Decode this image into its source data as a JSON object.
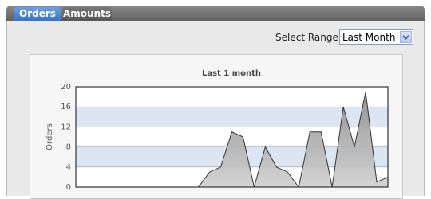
{
  "tabs": [
    "Orders",
    "Amounts"
  ],
  "range_label": "Select Range:",
  "range_value": "Last Month",
  "chart_data": {
    "type": "area",
    "title": "Last 1 month",
    "y_label": "Orders",
    "values": [
      0,
      0,
      0,
      0,
      0,
      0,
      0,
      0,
      0,
      0,
      0,
      0,
      3,
      4,
      11,
      10,
      0,
      8,
      4,
      3,
      0,
      11,
      11,
      0,
      16,
      8,
      19,
      1,
      2
    ],
    "color": "#999999",
    "ylim": [
      0,
      20
    ],
    "yticks": [
      0,
      4,
      8,
      12,
      16,
      20
    ],
    "grid": true
  }
}
